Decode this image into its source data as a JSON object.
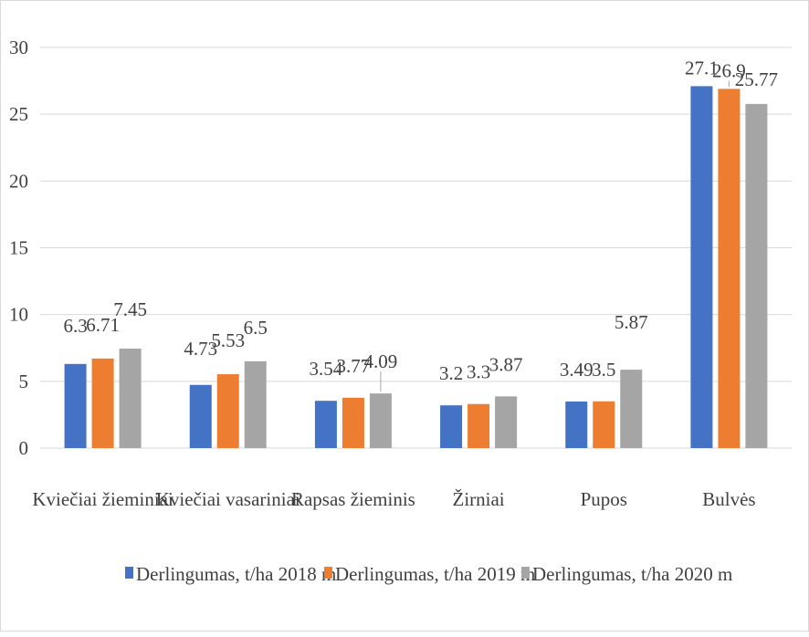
{
  "chart_data": {
    "type": "bar",
    "categories": [
      "Kviečiai žieminiai",
      "Kviečiai vasariniai",
      "Rapsas žieminis",
      "Žirniai",
      "Pupos",
      "Bulvės"
    ],
    "series": [
      {
        "name": "Derlingumas, t/ha 2018 m",
        "color": "#4472c4",
        "values": [
          6.3,
          4.73,
          3.54,
          3.2,
          3.49,
          27.1
        ]
      },
      {
        "name": "Derlingumas, t/ha 2019 m",
        "color": "#ed7d31",
        "values": [
          6.71,
          5.53,
          3.77,
          3.3,
          3.5,
          26.9
        ]
      },
      {
        "name": "Derlingumas, t/ha 2020 m",
        "color": "#a5a5a5",
        "values": [
          7.45,
          6.5,
          4.09,
          3.87,
          5.87,
          25.77
        ]
      }
    ],
    "ylim": [
      0,
      30
    ],
    "yticks": [
      "0",
      "5",
      "10",
      "15",
      "20",
      "25",
      "30"
    ],
    "grid": true,
    "legend": "bottom",
    "data_labels": true
  }
}
